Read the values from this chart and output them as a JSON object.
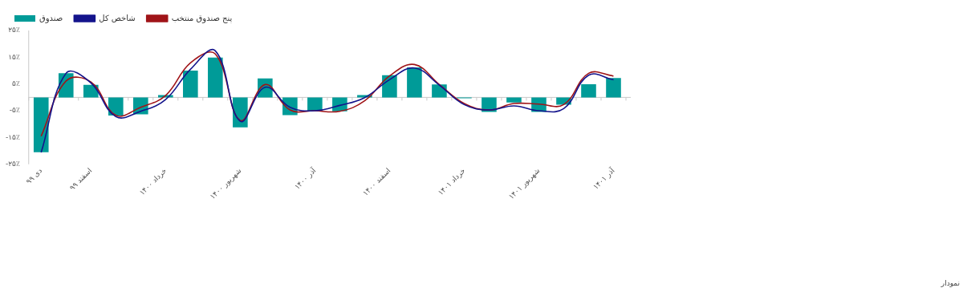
{
  "chart_data": {
    "type": "bar",
    "categories": [
      "دی ۹۹",
      null,
      "اسفند ۹۹",
      null,
      null,
      "خرداد ۱۴۰۰",
      null,
      null,
      "شهریور ۱۴۰۰",
      null,
      null,
      "آذر ۱۴۰۰",
      null,
      null,
      "اسفند ۱۴۰۰",
      null,
      null,
      "خرداد ۱۴۰۱",
      null,
      null,
      "شهریور ۱۴۰۱",
      null,
      null,
      "آذر ۱۴۰۱"
    ],
    "series": [
      {
        "name": "صندوق",
        "color": "#009b98",
        "values": [
          -20.5,
          9.0,
          4.7,
          -6.8,
          -6.3,
          0.9,
          10.0,
          14.9,
          -11.2,
          7.1,
          -6.6,
          -5.0,
          -5.2,
          0.9,
          8.3,
          11.2,
          4.8,
          -0.3,
          -5.4,
          -1.9,
          -5.4,
          -2.7,
          4.9,
          7.2
        ]
      },
      {
        "name": "شاخص کل",
        "type": "line",
        "color": "#14148c",
        "values": [
          -20.6,
          9.0,
          5.4,
          -7.2,
          -5.2,
          -0.8,
          10.5,
          17.4,
          -8.9,
          3.8,
          -3.7,
          -5.0,
          -3.0,
          -0.1,
          6.6,
          11.0,
          4.6,
          -2.7,
          -4.7,
          -3.2,
          -5.0,
          -4.2,
          8.3,
          6.6
        ]
      },
      {
        "name": "پنج صندوق منتخب",
        "type": "line",
        "color": "#a01418",
        "values": [
          -14.5,
          6.1,
          5.8,
          -6.7,
          -3.7,
          0.7,
          12.9,
          16.2,
          -8.6,
          4.8,
          -4.7,
          -5.0,
          -5.2,
          -1.3,
          8.0,
          12.3,
          4.8,
          -2.3,
          -4.7,
          -2.3,
          -2.5,
          -2.7,
          9.0,
          8.0
        ]
      }
    ],
    "ylim": [
      -25,
      25
    ],
    "yticks": [
      {
        "value": -25,
        "label": "-۲۵٪"
      },
      {
        "value": -15,
        "label": "-۱۵٪"
      },
      {
        "value": -5,
        "label": "-۵٪"
      },
      {
        "value": 5,
        "label": "۵٪"
      },
      {
        "value": 15,
        "label": "۱۵٪"
      },
      {
        "value": 25,
        "label": "۲۵٪"
      }
    ],
    "legend": "top left",
    "marker": "none",
    "annotations": [
      "نمودار"
    ]
  }
}
